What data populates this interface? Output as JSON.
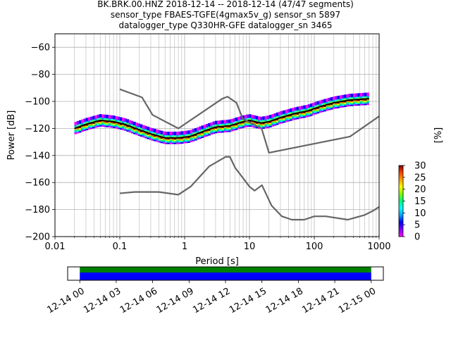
{
  "title_lines": [
    "BK.BRK.00.HNZ   2018-12-14 -- 2018-12-14  (47/47 segments)",
    "sensor_type FBAES-TGFE(4gmax5v_g) sensor_sn 5897",
    "datalogger_type Q330HR-GFE datalogger_sn 3465"
  ],
  "chart_data": {
    "type": "heatmap",
    "xlabel": "Period [s]",
    "ylabel": "Power [dB]",
    "xscale": "log",
    "xlim": [
      0.01,
      1000
    ],
    "ylim": [
      -200,
      -50
    ],
    "grid": true,
    "x_ticks": [
      {
        "value": 0.01,
        "label": "0.01"
      },
      {
        "value": 0.1,
        "label": "0.1"
      },
      {
        "value": 1,
        "label": "1"
      },
      {
        "value": 10,
        "label": "10"
      },
      {
        "value": 100,
        "label": "100"
      },
      {
        "value": 1000,
        "label": "1000"
      }
    ],
    "y_ticks": [
      {
        "value": -60,
        "label": "−60"
      },
      {
        "value": -80,
        "label": "−80"
      },
      {
        "value": -100,
        "label": "−100"
      },
      {
        "value": -120,
        "label": "−120"
      },
      {
        "value": -140,
        "label": "−140"
      },
      {
        "value": -160,
        "label": "−160"
      },
      {
        "value": -180,
        "label": "−180"
      },
      {
        "value": -200,
        "label": "−200"
      }
    ],
    "noise_models": [
      {
        "color": "#666666",
        "points": [
          [
            0.1,
            -91
          ],
          [
            0.22,
            -97
          ],
          [
            0.32,
            -110
          ],
          [
            0.8,
            -120
          ],
          [
            3.8,
            -98
          ],
          [
            4.6,
            -96.5
          ],
          [
            6.3,
            -101
          ],
          [
            7.9,
            -113
          ],
          [
            15.4,
            -120
          ],
          [
            20,
            -138
          ],
          [
            354.8,
            -126
          ],
          [
            1000,
            -111
          ]
        ]
      },
      {
        "color": "#666666",
        "points": [
          [
            0.1,
            -168
          ],
          [
            0.17,
            -167
          ],
          [
            0.4,
            -167
          ],
          [
            0.8,
            -169
          ],
          [
            1.24,
            -163
          ],
          [
            2.4,
            -148
          ],
          [
            4.3,
            -141
          ],
          [
            5,
            -141
          ],
          [
            6,
            -149
          ],
          [
            10,
            -163
          ],
          [
            12,
            -166
          ],
          [
            15.6,
            -162
          ],
          [
            21.9,
            -177
          ],
          [
            31.6,
            -185
          ],
          [
            45,
            -187.5
          ],
          [
            70,
            -187.5
          ],
          [
            100,
            -185
          ],
          [
            150,
            -185
          ],
          [
            328.9,
            -187.5
          ],
          [
            600,
            -184
          ],
          [
            800,
            -181
          ],
          [
            1000,
            -178
          ]
        ]
      }
    ],
    "mean_curve": {
      "color": "#000000",
      "points": [
        [
          0.02,
          -120
        ],
        [
          0.03,
          -117
        ],
        [
          0.05,
          -114
        ],
        [
          0.08,
          -115
        ],
        [
          0.12,
          -117
        ],
        [
          0.2,
          -121
        ],
        [
          0.3,
          -124
        ],
        [
          0.5,
          -127
        ],
        [
          0.8,
          -127
        ],
        [
          1.2,
          -126
        ],
        [
          2,
          -122
        ],
        [
          3,
          -119
        ],
        [
          5,
          -118
        ],
        [
          8,
          -115
        ],
        [
          10,
          -114
        ],
        [
          15,
          -116
        ],
        [
          20,
          -115
        ],
        [
          30,
          -112
        ],
        [
          50,
          -109
        ],
        [
          80,
          -107
        ],
        [
          120,
          -104
        ],
        [
          200,
          -101
        ],
        [
          350,
          -99
        ],
        [
          700,
          -98
        ]
      ]
    },
    "colorbar": {
      "label": "[%]",
      "range": [
        0,
        30
      ],
      "ticks": [
        {
          "value": 0,
          "label": "0"
        },
        {
          "value": 5,
          "label": "5"
        },
        {
          "value": 10,
          "label": "10"
        },
        {
          "value": 15,
          "label": "15"
        },
        {
          "value": 20,
          "label": "20"
        },
        {
          "value": 25,
          "label": "25"
        },
        {
          "value": 30,
          "label": "30"
        }
      ],
      "colors": [
        "#ff00ff",
        "#8000ff",
        "#0000ff",
        "#00a0ff",
        "#00ffff",
        "#00ff80",
        "#80ff00",
        "#ffff00",
        "#ffa000",
        "#ff4000",
        "#800000"
      ]
    },
    "timeline": {
      "start_hour": 0,
      "end_hour": 24,
      "axis_min_hour": -1,
      "axis_max_hour": 25,
      "coverage": [
        {
          "start_hour": 0,
          "end_hour": 24,
          "top_color": "#008000",
          "bottom_color": "#0000ff"
        }
      ],
      "ticks": [
        {
          "hour": 0,
          "label": "12-14 00"
        },
        {
          "hour": 3,
          "label": "12-14 03"
        },
        {
          "hour": 6,
          "label": "12-14 06"
        },
        {
          "hour": 9,
          "label": "12-14 09"
        },
        {
          "hour": 12,
          "label": "12-14 12"
        },
        {
          "hour": 15,
          "label": "12-14 15"
        },
        {
          "hour": 18,
          "label": "12-14 18"
        },
        {
          "hour": 21,
          "label": "12-14 21"
        },
        {
          "hour": 24,
          "label": "12-15 00"
        }
      ]
    }
  }
}
